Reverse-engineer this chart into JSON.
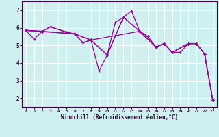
{
  "xlabel": "Windchill (Refroidissement éolien,°C)",
  "bg_color": "#cff0f0",
  "line_color": "#990099",
  "grid_color": "#ffffff",
  "xlim": [
    -0.5,
    23.5
  ],
  "ylim": [
    1.5,
    7.5
  ],
  "xticks": [
    0,
    1,
    2,
    3,
    4,
    5,
    6,
    7,
    8,
    9,
    10,
    11,
    12,
    13,
    14,
    15,
    16,
    17,
    18,
    19,
    20,
    21,
    22,
    23
  ],
  "yticks": [
    2,
    3,
    4,
    5,
    6,
    7
  ],
  "series": [
    {
      "x": [
        0,
        1,
        2,
        3,
        5,
        6,
        7,
        8,
        9,
        10,
        11,
        12,
        13,
        14,
        15,
        16,
        17,
        18,
        19,
        20,
        21,
        22,
        23
      ],
      "y": [
        5.85,
        5.35,
        5.8,
        6.05,
        5.75,
        5.65,
        5.15,
        5.3,
        3.55,
        4.45,
        6.3,
        6.6,
        6.95,
        5.8,
        5.5,
        4.9,
        5.1,
        4.6,
        4.6,
        5.1,
        5.1,
        4.5,
        1.9
      ]
    },
    {
      "x": [
        0,
        2,
        3,
        5,
        6,
        7,
        8,
        10,
        12,
        14,
        15,
        16,
        17,
        18,
        20,
        21,
        22,
        23
      ],
      "y": [
        5.85,
        5.8,
        6.05,
        5.75,
        5.65,
        5.15,
        5.3,
        4.45,
        6.6,
        5.8,
        5.5,
        4.9,
        5.1,
        4.6,
        5.1,
        5.1,
        4.5,
        1.9
      ]
    },
    {
      "x": [
        0,
        2,
        6,
        8,
        10,
        12,
        14,
        16,
        17,
        18,
        20,
        21,
        22,
        23
      ],
      "y": [
        5.85,
        5.8,
        5.65,
        5.3,
        4.45,
        6.6,
        5.8,
        4.9,
        5.1,
        4.6,
        5.1,
        5.1,
        4.5,
        1.9
      ]
    },
    {
      "x": [
        0,
        6,
        8,
        14,
        16,
        17,
        18,
        20,
        21,
        22,
        23
      ],
      "y": [
        5.85,
        5.65,
        5.3,
        5.8,
        4.9,
        5.1,
        4.6,
        5.1,
        5.1,
        4.5,
        1.9
      ]
    }
  ]
}
